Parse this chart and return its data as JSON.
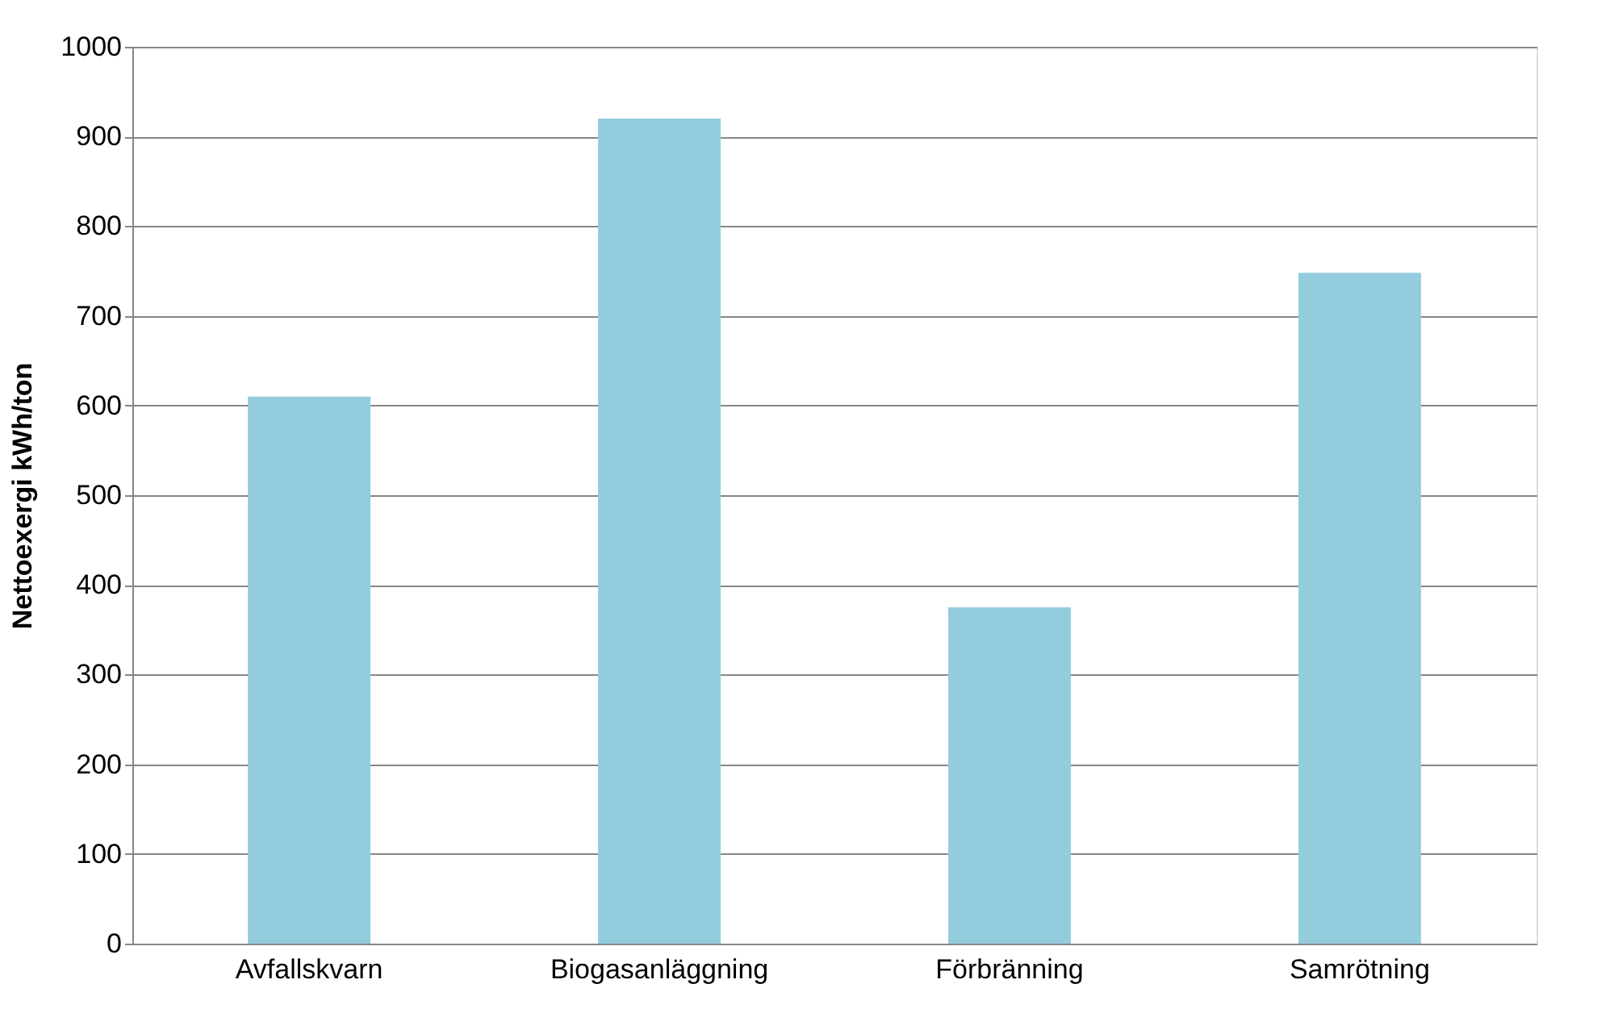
{
  "chart_data": {
    "type": "bar",
    "ylabel": "Nettoexergi kWh/ton",
    "categories": [
      "Avfallskvarn",
      "Biogasanläggning",
      "Förbränning",
      "Samrötning"
    ],
    "values": [
      610,
      920,
      375,
      748
    ],
    "color": "#93cddd",
    "ylim": [
      0,
      1000
    ],
    "yticks": [
      0,
      100,
      200,
      300,
      400,
      500,
      600,
      700,
      800,
      900,
      1000
    ],
    "grid": "y"
  }
}
